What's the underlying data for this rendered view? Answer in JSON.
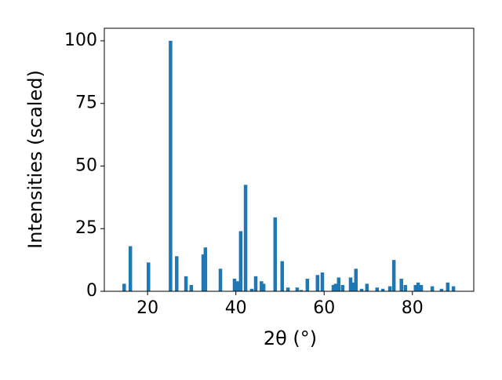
{
  "chart_data": {
    "type": "bar",
    "x_label": "2θ (°)",
    "y_label": "Intensities (scaled)",
    "x": [
      14.7,
      16.1,
      20.2,
      25.2,
      26.6,
      28.7,
      29.9,
      32.6,
      33.1,
      36.5,
      39.7,
      40.4,
      41.1,
      42.2,
      43.6,
      44.5,
      45.8,
      46.3,
      48.9,
      50.5,
      51.8,
      53.9,
      54.8,
      56.2,
      58.5,
      59.6,
      62.1,
      62.6,
      63.3,
      64.2,
      66.0,
      66.7,
      67.2,
      68.5,
      69.7,
      72.0,
      73.3,
      74.9,
      75.8,
      77.5,
      78.4,
      80.7,
      81.3,
      82.0,
      84.5,
      86.6,
      88.0,
      89.3
    ],
    "values": [
      3,
      18,
      11.5,
      100,
      14,
      6,
      2.5,
      14.7,
      17.5,
      9,
      5,
      4,
      24,
      42.5,
      1,
      6,
      4,
      3,
      29.5,
      12,
      1.5,
      1.5,
      0.5,
      5,
      6.5,
      7.5,
      2.5,
      3,
      5.5,
      2.5,
      5.5,
      3.5,
      9,
      1,
      3,
      1.5,
      1,
      2,
      12.5,
      5,
      2.5,
      2.5,
      3.5,
      2.5,
      2,
      1,
      3.5,
      2
    ],
    "color": "#1f77b4",
    "xlim": [
      10.2,
      93.9
    ],
    "xticks": [
      20,
      40,
      60,
      80
    ],
    "ylim": [
      0,
      105
    ],
    "yticks": [
      0,
      25,
      50,
      75,
      100
    ]
  }
}
